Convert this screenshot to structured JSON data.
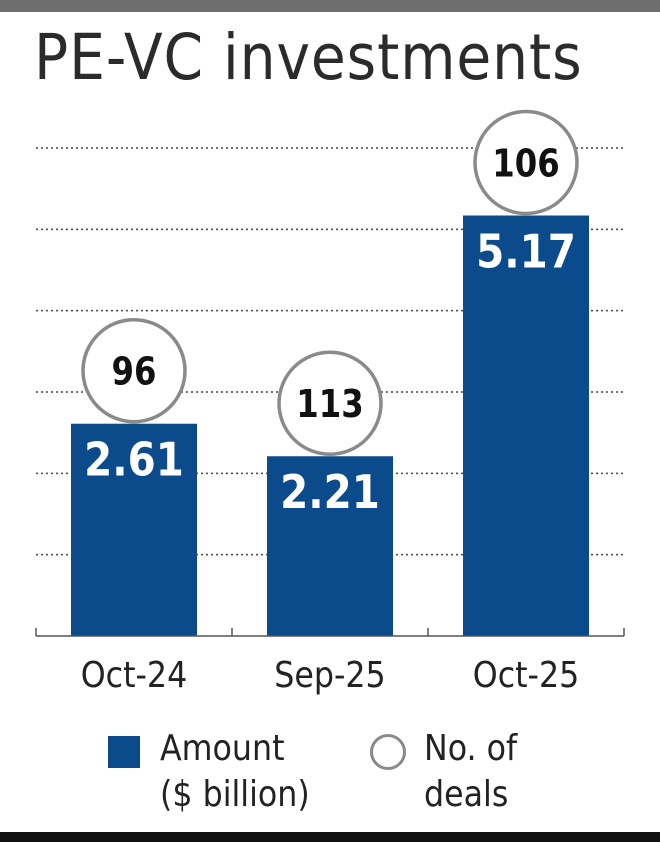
{
  "chart_data": {
    "type": "bar",
    "title": "PE-VC investments",
    "categories": [
      "Oct-24",
      "Sep-25",
      "Oct-25"
    ],
    "series": [
      {
        "name": "Amount ($ billion)",
        "values": [
          2.61,
          2.21,
          5.17
        ]
      },
      {
        "name": "No. of deals",
        "values": [
          96,
          113,
          106
        ]
      }
    ],
    "ylim": [
      0,
      6
    ],
    "grid": true,
    "legend_position": "bottom",
    "colors": {
      "bar": "#0b4a8b",
      "circle_stroke": "#8a8a8a",
      "grid": "#444444"
    }
  },
  "legend": {
    "amount_line1": "Amount",
    "amount_line2": "($ billion)",
    "deals_line1": "No. of",
    "deals_line2": "deals"
  }
}
